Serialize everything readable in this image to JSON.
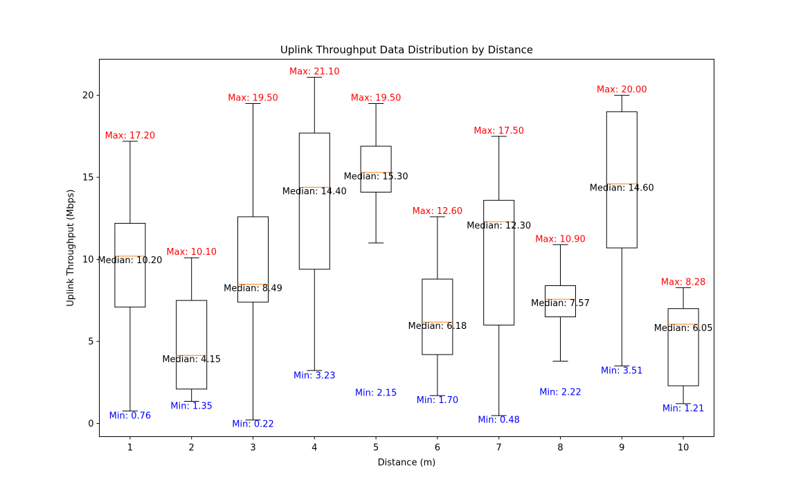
{
  "chart_data": {
    "type": "box",
    "title": "Uplink Throughput Data Distribution by Distance",
    "xlabel": "Distance (m)",
    "ylabel": "Uplink Throughput (Mbps)",
    "ylim": [
      -0.8,
      22.2
    ],
    "yticks": [
      0,
      5,
      10,
      15,
      20
    ],
    "grid": false,
    "colors": {
      "box": "#000000",
      "median": "#ff7f0e",
      "max_label": "#ff0000",
      "min_label": "#0000ff"
    },
    "categories": [
      "1",
      "2",
      "3",
      "4",
      "5",
      "6",
      "7",
      "8",
      "9",
      "10"
    ],
    "boxes": [
      {
        "q1": 7.1,
        "median": 10.2,
        "q3": 12.2,
        "whisker_low": 0.76,
        "whisker_high": 17.2,
        "max_label": "Max: 17.20",
        "median_label": "Median: 10.20",
        "min_label": "Min: 0.76",
        "min_label_y": 0.5
      },
      {
        "q1": 2.1,
        "median": 4.15,
        "q3": 7.5,
        "whisker_low": 1.35,
        "whisker_high": 10.1,
        "max_label": "Max: 10.10",
        "median_label": "Median: 4.15",
        "min_label": "Min: 1.35",
        "min_label_y": 1.1
      },
      {
        "q1": 7.4,
        "median": 8.49,
        "q3": 12.6,
        "whisker_low": 0.22,
        "whisker_high": 19.5,
        "max_label": "Max: 19.50",
        "median_label": "Median: 8.49",
        "min_label": "Min: 0.22",
        "min_label_y": 0.0
      },
      {
        "q1": 9.4,
        "median": 14.4,
        "q3": 17.7,
        "whisker_low": 3.23,
        "whisker_high": 21.1,
        "max_label": "Max: 21.10",
        "median_label": "Median: 14.40",
        "min_label": "Min: 3.23",
        "min_label_y": 2.95
      },
      {
        "q1": 14.1,
        "median": 15.3,
        "q3": 16.9,
        "whisker_low": 11.0,
        "whisker_high": 19.5,
        "max_label": "Max: 19.50",
        "median_label": "Median: 15.30",
        "min_label": "Min: 2.15",
        "min_label_y": 1.9
      },
      {
        "q1": 4.2,
        "median": 6.18,
        "q3": 8.8,
        "whisker_low": 1.7,
        "whisker_high": 12.6,
        "max_label": "Max: 12.60",
        "median_label": "Median: 6.18",
        "min_label": "Min: 1.70",
        "min_label_y": 1.45
      },
      {
        "q1": 6.0,
        "median": 12.3,
        "q3": 13.6,
        "whisker_low": 0.48,
        "whisker_high": 17.5,
        "max_label": "Max: 17.50",
        "median_label": "Median: 12.30",
        "min_label": "Min: 0.48",
        "min_label_y": 0.25
      },
      {
        "q1": 6.5,
        "median": 7.57,
        "q3": 8.4,
        "whisker_low": 3.8,
        "whisker_high": 10.9,
        "max_label": "Max: 10.90",
        "median_label": "Median: 7.57",
        "min_label": "Min: 2.22",
        "min_label_y": 1.95
      },
      {
        "q1": 10.7,
        "median": 14.6,
        "q3": 19.0,
        "whisker_low": 3.51,
        "whisker_high": 20.0,
        "max_label": "Max: 20.00",
        "median_label": "Median: 14.60",
        "min_label": "Min: 3.51",
        "min_label_y": 3.25
      },
      {
        "q1": 2.3,
        "median": 6.05,
        "q3": 7.0,
        "whisker_low": 1.21,
        "whisker_high": 8.28,
        "max_label": "Max: 8.28",
        "median_label": "Median: 6.05",
        "min_label": "Min: 1.21",
        "min_label_y": 0.95
      }
    ]
  }
}
